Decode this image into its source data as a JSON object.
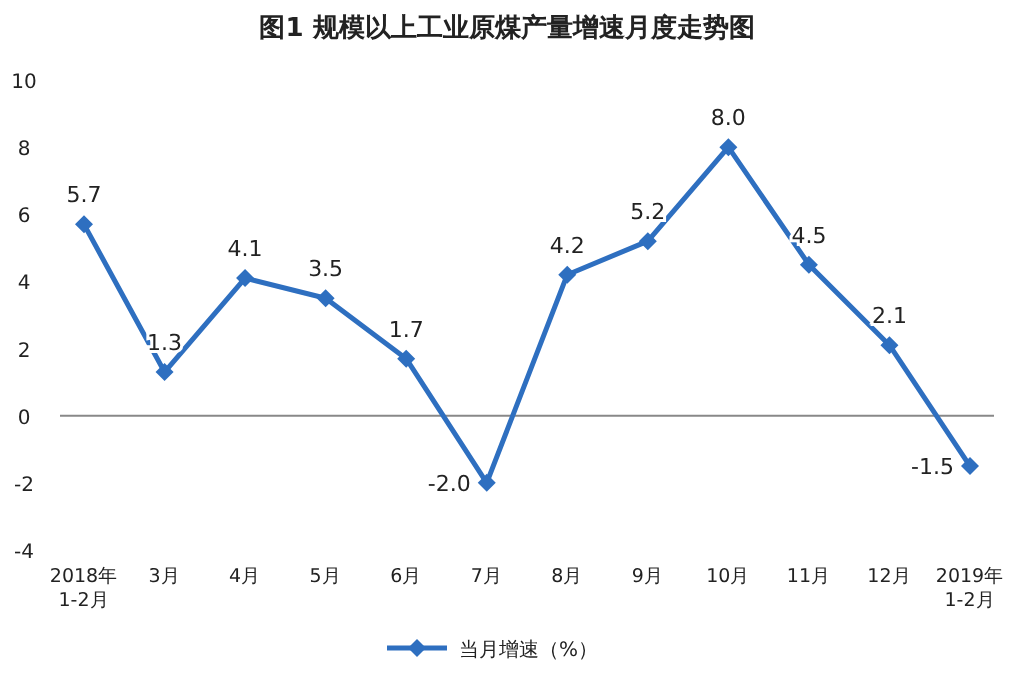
{
  "chart_data": {
    "type": "line",
    "title": "图1  规模以上工业原煤产量增速月度走势图",
    "categories": [
      "2018年\n1-2月",
      "3月",
      "4月",
      "5月",
      "6月",
      "7月",
      "8月",
      "9月",
      "10月",
      "11月",
      "12月",
      "2019年\n1-2月"
    ],
    "series": [
      {
        "name": "当月增速（%）",
        "color": "#2e6fc0",
        "values": [
          5.7,
          1.3,
          4.1,
          3.5,
          1.7,
          -2.0,
          4.2,
          5.2,
          8.0,
          4.5,
          2.1,
          -1.5
        ],
        "value_labels": [
          "5.7",
          "1.3",
          "4.1",
          "3.5",
          "1.7",
          "-2.0",
          "4.2",
          "5.2",
          "8.0",
          "4.5",
          "2.1",
          "-1.5"
        ]
      }
    ],
    "ylim": [
      -4,
      10
    ],
    "yticks": [
      -4,
      -2,
      0,
      2,
      4,
      6,
      8,
      10
    ],
    "marker": "diamond",
    "legend": "bottom"
  }
}
